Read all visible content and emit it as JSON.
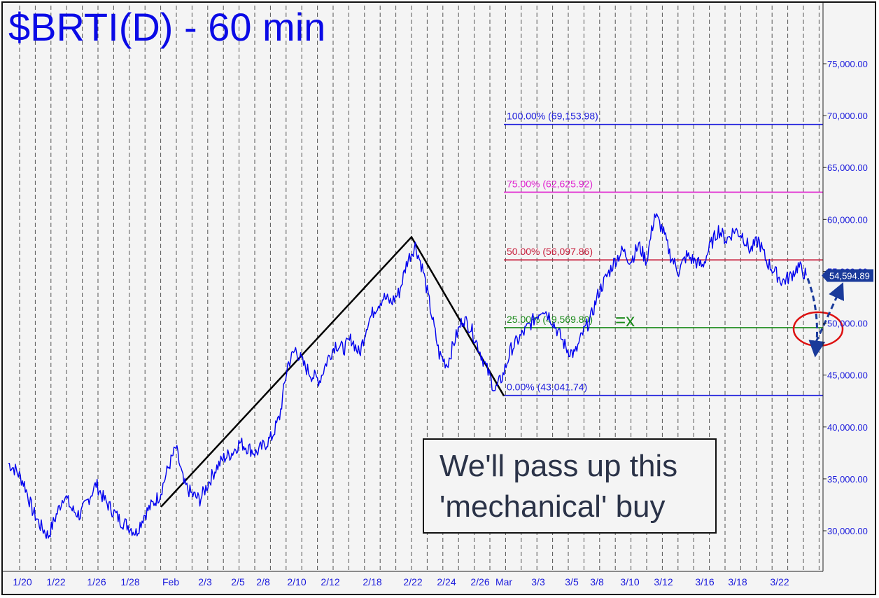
{
  "title": "$BRTI(D) - 60 min",
  "note": {
    "line1": "We'll pass up this",
    "line2": "'mechanical' buy"
  },
  "colors": {
    "price": "#0000ee",
    "fib_100": "#1a1adc",
    "fib_75": "#e020d0",
    "fib_50": "#c81e3c",
    "fib_25": "#1a8a1a",
    "fib_0": "#1a1adc",
    "trend": "#000000",
    "circle": "#dd1111",
    "arrow": "#1a3a9a",
    "axis_text": "#1a1adc"
  },
  "chart_data": {
    "type": "line",
    "ylim": [
      25000,
      78000
    ],
    "y_ticks": [
      "30,000.00",
      "35,000.00",
      "40,000.00",
      "45,000.00",
      "50,000.00",
      "55,000.00",
      "60,000.00",
      "65,000.00",
      "70,000.00",
      "75,000.00"
    ],
    "y_tick_values": [
      30000,
      35000,
      40000,
      45000,
      50000,
      55000,
      60000,
      65000,
      70000,
      75000
    ],
    "x_labels": [
      "1/20",
      "1/22",
      "1/26",
      "1/28",
      "Feb",
      "2/3",
      "2/5",
      "2/8",
      "2/10",
      "2/12",
      "2/18",
      "2/22",
      "2/24",
      "2/26",
      "Mar",
      "3/3",
      "3/5",
      "3/8",
      "3/10",
      "3/12",
      "3/16",
      "3/18",
      "3/22"
    ],
    "last_price": 54594.89,
    "last_price_label": "54,594.89",
    "series": [
      {
        "values": [
          36500,
          35800,
          34500,
          32000,
          30500,
          29500,
          31500,
          33500,
          32000,
          31500,
          33000,
          34500,
          33000,
          32000,
          31000,
          30500,
          29800,
          31500,
          32500,
          33500,
          36000,
          38000,
          34500,
          33500,
          33000,
          34500,
          36000,
          37000,
          37500,
          38500,
          38000,
          37500,
          38200,
          39000,
          41000,
          46000,
          47500,
          46000,
          45000,
          44500,
          46500,
          48000,
          47500,
          48500,
          47000,
          50000,
          51500,
          52500,
          52000,
          53000,
          56000,
          57500,
          55000,
          51000,
          47000,
          46000,
          48500,
          50500,
          49500,
          47500,
          45500,
          43500,
          45000,
          47500,
          48500,
          49500,
          50500,
          51500,
          50500,
          49000,
          47500,
          47000,
          49000,
          50500,
          53000,
          54500,
          56000,
          57000,
          56000,
          57500,
          56000,
          60500,
          59000,
          56500,
          55000,
          56500,
          56000,
          55500,
          57500,
          59000,
          58000,
          59000,
          58500,
          57000,
          58000,
          56000,
          55000,
          54000,
          54500,
          55500,
          54595
        ]
      }
    ],
    "fib_levels": [
      {
        "label": "100.00% (69,153.98)",
        "value": 69153.98
      },
      {
        "label": "75.00% (62,625.92)",
        "value": 62625.92
      },
      {
        "label": "50.00% (56,097.86)",
        "value": 56097.86
      },
      {
        "label": "25.00% (49,569.80)",
        "value": 49569.8
      },
      {
        "label": "0.00% (43,041.74)",
        "value": 43041.74
      }
    ],
    "fib_target_marker": "=x",
    "trend_points": [
      32300,
      58300,
      43000
    ]
  }
}
